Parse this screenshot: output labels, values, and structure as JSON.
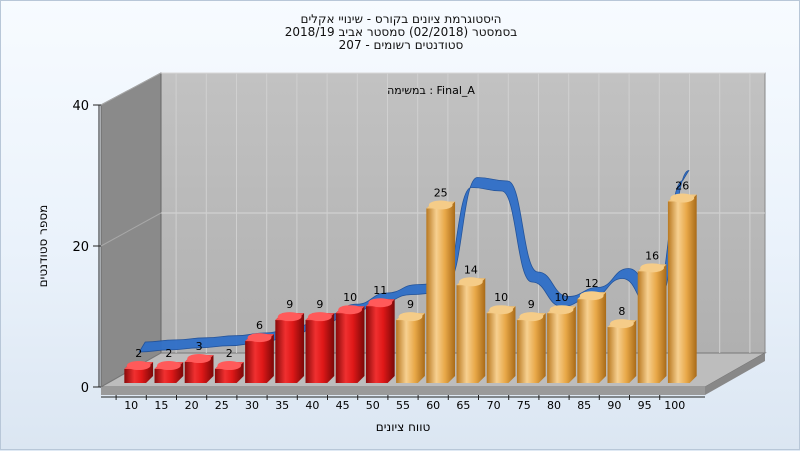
{
  "chart": {
    "title_line1": "היסטוגרמת ציונים בקורס - שינויי אקלים",
    "title_line2": "בסמסטר (02/2018) סמסטר אביב 2018/19",
    "title_line3": "סטודנטים רשומים - 207",
    "inner_label": "במשימה : Final_A",
    "xlabel": "טווח ציונים",
    "ylabel": "מספר סטודנטים"
  },
  "chart_data": {
    "type": "bar",
    "categories": [
      "10",
      "15",
      "20",
      "25",
      "30",
      "35",
      "40",
      "45",
      "50",
      "55",
      "60",
      "65",
      "70",
      "75",
      "80",
      "85",
      "90",
      "95",
      "100"
    ],
    "values": [
      2,
      2,
      3,
      2,
      6,
      9,
      9,
      10,
      11,
      9,
      25,
      14,
      10,
      9,
      10,
      12,
      8,
      16,
      26
    ],
    "title": "היסטוגרמת ציונים בקורס - שינויי אקלים",
    "xlabel": "טווח ציונים",
    "ylabel": "מספר סטודנטים",
    "ylim": [
      0,
      40
    ],
    "yticks": [
      0,
      20,
      40
    ],
    "grid": true,
    "bar_colors": {
      "failing": "#d81818",
      "passing": "#e8a848"
    },
    "failing_threshold": 55,
    "curve_color": "#2f6fc8",
    "curve": [
      3,
      3.3,
      3.6,
      3.9,
      4.3,
      5.2,
      6.8,
      8.4,
      10.0,
      11.2,
      11.5,
      26.5,
      26.0,
      13.0,
      9.5,
      10.8,
      13.5,
      9.0,
      27.5
    ]
  }
}
